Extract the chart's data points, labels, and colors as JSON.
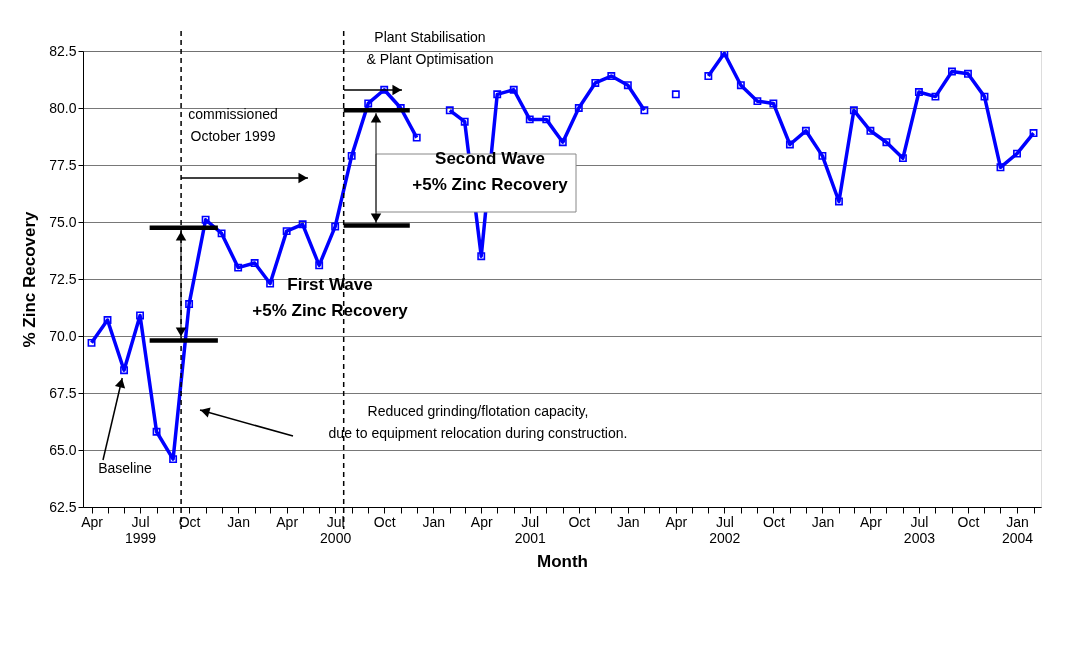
{
  "chart_data": {
    "type": "line",
    "xlabel": "Month",
    "ylabel": "% Zinc Recovery",
    "x": [
      "1999-04",
      "1999-05",
      "1999-06",
      "1999-07",
      "1999-08",
      "1999-09",
      "1999-10",
      "1999-11",
      "1999-12",
      "2000-01",
      "2000-02",
      "2000-03",
      "2000-04",
      "2000-05",
      "2000-06",
      "2000-07",
      "2000-08",
      "2000-09",
      "2000-10",
      "2000-11",
      "2000-12",
      "2001-01",
      "2001-02",
      "2001-03",
      "2001-04",
      "2001-05",
      "2001-06",
      "2001-07",
      "2001-08",
      "2001-09",
      "2001-10",
      "2001-11",
      "2001-12",
      "2002-01",
      "2002-02",
      "2002-03",
      "2002-04",
      "2002-05",
      "2002-06",
      "2002-07",
      "2002-08",
      "2002-09",
      "2002-10",
      "2002-11",
      "2002-12",
      "2003-01",
      "2003-02",
      "2003-03",
      "2003-04",
      "2003-05",
      "2003-06",
      "2003-07",
      "2003-08",
      "2003-09",
      "2003-10",
      "2003-11",
      "2003-12",
      "2004-01",
      "2004-02"
    ],
    "series": [
      {
        "color": "#0000ff",
        "values": [
          69.7,
          70.7,
          68.5,
          70.9,
          65.8,
          64.6,
          71.4,
          75.1,
          74.5,
          73.0,
          73.2,
          72.3,
          74.6,
          74.9,
          73.1,
          74.8,
          77.9,
          80.2,
          80.8,
          80.0,
          78.7,
          null,
          79.9,
          79.4,
          73.5,
          80.6,
          80.8,
          79.5,
          79.5,
          78.5,
          80.0,
          81.1,
          81.4,
          81.0,
          79.9,
          null,
          80.6,
          null,
          81.4,
          82.4,
          81.0,
          80.3,
          80.2,
          78.4,
          79.0,
          77.9,
          75.9,
          79.9,
          79.0,
          78.5,
          77.8,
          80.7,
          80.5,
          81.6,
          81.5,
          80.5,
          77.4,
          78.0,
          78.9
        ]
      },
      {
        "type": "line",
        "marker": "none",
        "color": "#000000",
        "x": [
          "1999-07-19",
          "1999-11-24"
        ],
        "values": [
          74.75,
          74.75
        ]
      },
      {
        "type": "line",
        "marker": "none",
        "color": "#000000",
        "x": [
          "1999-07-19",
          "1999-11-24"
        ],
        "values": [
          69.8,
          69.8
        ]
      },
      {
        "type": "line",
        "marker": "none",
        "color": "#000000",
        "x": [
          "2000-07-17",
          "2000-11-18"
        ],
        "values": [
          79.9,
          79.9
        ]
      },
      {
        "type": "line",
        "marker": "none",
        "color": "#000000",
        "x": [
          "2000-07-17",
          "2000-11-18"
        ],
        "values": [
          74.85,
          74.85
        ]
      }
    ],
    "xlim": [
      "1999-03-16",
      "2004-02-15"
    ],
    "xticks": [
      {
        "value": "1999-04",
        "label": "Apr"
      },
      {
        "value": "1999-05",
        "label": null
      },
      {
        "value": "1999-06",
        "label": null
      },
      {
        "value": "1999-07",
        "label": "Jul 1999"
      },
      {
        "value": "1999-08",
        "label": null
      },
      {
        "value": "1999-09",
        "label": null
      },
      {
        "value": "1999-10",
        "label": "Oct"
      },
      {
        "value": "1999-11",
        "label": null
      },
      {
        "value": "1999-12",
        "label": null
      },
      {
        "value": "2000-01",
        "label": "Jan"
      },
      {
        "value": "2000-02",
        "label": null
      },
      {
        "value": "2000-03",
        "label": null
      },
      {
        "value": "2000-04",
        "label": "Apr"
      },
      {
        "value": "2000-05",
        "label": null
      },
      {
        "value": "2000-06",
        "label": null
      },
      {
        "value": "2000-07",
        "label": "Jul 2000"
      },
      {
        "value": "2000-08",
        "label": null
      },
      {
        "value": "2000-09",
        "label": null
      },
      {
        "value": "2000-10",
        "label": "Oct"
      },
      {
        "value": "2000-11",
        "label": null
      },
      {
        "value": "2000-12",
        "label": null
      },
      {
        "value": "2001-01",
        "label": "Jan"
      },
      {
        "value": "2001-02",
        "label": null
      },
      {
        "value": "2001-03",
        "label": null
      },
      {
        "value": "2001-04",
        "label": "Apr"
      },
      {
        "value": "2001-05",
        "label": null
      },
      {
        "value": "2001-06",
        "label": null
      },
      {
        "value": "2001-07",
        "label": "Jul 2001"
      },
      {
        "value": "2001-08",
        "label": null
      },
      {
        "value": "2001-09",
        "label": null
      },
      {
        "value": "2001-10",
        "label": "Oct"
      },
      {
        "value": "2001-11",
        "label": null
      },
      {
        "value": "2001-12",
        "label": null
      },
      {
        "value": "2002-01",
        "label": "Jan"
      },
      {
        "value": "2002-02",
        "label": null
      },
      {
        "value": "2002-03",
        "label": null
      },
      {
        "value": "2002-04",
        "label": "Apr"
      },
      {
        "value": "2002-05",
        "label": null
      },
      {
        "value": "2002-06",
        "label": null
      },
      {
        "value": "2002-07",
        "label": "Jul 2002"
      },
      {
        "value": "2002-08",
        "label": null
      },
      {
        "value": "2002-09",
        "label": null
      },
      {
        "value": "2002-10",
        "label": "Oct"
      },
      {
        "value": "2002-11",
        "label": null
      },
      {
        "value": "2002-12",
        "label": null
      },
      {
        "value": "2003-01",
        "label": "Jan"
      },
      {
        "value": "2003-02",
        "label": null
      },
      {
        "value": "2003-03",
        "label": null
      },
      {
        "value": "2003-04",
        "label": "Apr"
      },
      {
        "value": "2003-05",
        "label": null
      },
      {
        "value": "2003-06",
        "label": null
      },
      {
        "value": "2003-07",
        "label": "Jul 2003"
      },
      {
        "value": "2003-08",
        "label": null
      },
      {
        "value": "2003-09",
        "label": null
      },
      {
        "value": "2003-10",
        "label": "Oct"
      },
      {
        "value": "2003-11",
        "label": null
      },
      {
        "value": "2003-12",
        "label": null
      },
      {
        "value": "2004-01",
        "label": "Jan 2004"
      },
      {
        "value": "2004-02",
        "label": null
      }
    ],
    "ylim": [
      62.5,
      82.5
    ],
    "yticks": [
      {
        "value": 62.5,
        "label": "62.5"
      },
      {
        "value": 65,
        "label": "65.0"
      },
      {
        "value": 67.5,
        "label": "67.5"
      },
      {
        "value": 70,
        "label": "70.0"
      },
      {
        "value": 72.5,
        "label": "72.5"
      },
      {
        "value": 75,
        "label": "75.0"
      },
      {
        "value": 77.5,
        "label": "77.5"
      },
      {
        "value": 80,
        "label": "80.0"
      },
      {
        "value": 82.5,
        "label": "82.5"
      }
    ],
    "grid": "y",
    "marker": "square",
    "line_style": "solid",
    "ref_lines": [
      {
        "axis": "x",
        "value": "1999-09-16",
        "line_style": "dashed"
      },
      {
        "axis": "x",
        "value": "2000-07-17",
        "line_style": "dashed"
      }
    ],
    "annotations": [
      "Plant Stabilisation & Plant Optimisation",
      "commissioned October 1999",
      "Second Wave +5% Zinc Recovery",
      "First Wave +5% Zinc Recovery",
      "Reduced grinding/flotation capacity, due to equipment relocation during construction.",
      {
        "text": "Baseline",
        "x": "1999-06",
        "y": 68.5
      }
    ]
  }
}
